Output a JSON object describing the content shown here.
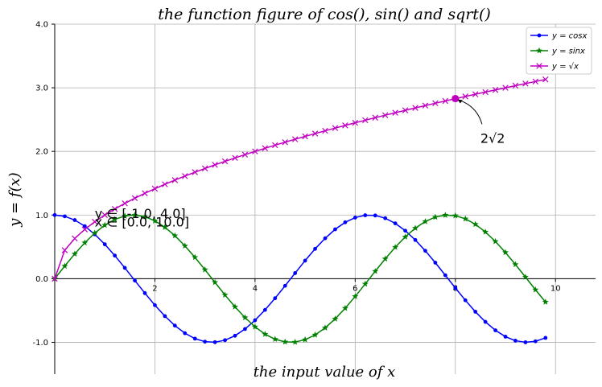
{
  "chart_data": {
    "type": "line",
    "title": "the function figure of cos(), sin() and sqrt()",
    "xlabel": "the input value of x",
    "ylabel": "y = f(x)",
    "xlim": [
      0,
      10.8
    ],
    "ylim": [
      -1.5,
      4.0
    ],
    "grid": true,
    "legend_position": "top-right",
    "x_ticks": [
      2,
      4,
      6,
      8,
      10
    ],
    "x_tick_labels": [
      "2",
      "4",
      "6",
      "8",
      "10"
    ],
    "y_ticks": [
      -1.0,
      0.0,
      1.0,
      2.0,
      3.0,
      4.0
    ],
    "y_tick_labels": [
      "-1.0",
      "0.0",
      "1.0",
      "2.0",
      "3.0",
      "4.0"
    ],
    "x_sampling": {
      "start": 0,
      "stop": 10,
      "step": 0.2
    },
    "series": [
      {
        "name": "y = cos x",
        "function": "cos",
        "color": "#0000ff",
        "marker": "dot",
        "legend_label": "y = cosx"
      },
      {
        "name": "y = sin x",
        "function": "sin",
        "color": "#008000",
        "marker": "star",
        "legend_label": "y = sinx"
      },
      {
        "name": "y = √x",
        "function": "sqrt",
        "color": "#bf00bf",
        "marker": "x",
        "legend_label": "y = √x"
      }
    ],
    "annotations": [
      {
        "text": "y ∈ [-1.0, 4.0]",
        "x": 0.8,
        "y": 0.95
      },
      {
        "text": "x ∈ [0.0, 10.0]",
        "x": 0.8,
        "y": 0.82
      }
    ],
    "highlight": {
      "x": 8,
      "y": 2.83,
      "label": "2√2",
      "text_x": 8.5,
      "text_y": 2.2
    }
  }
}
